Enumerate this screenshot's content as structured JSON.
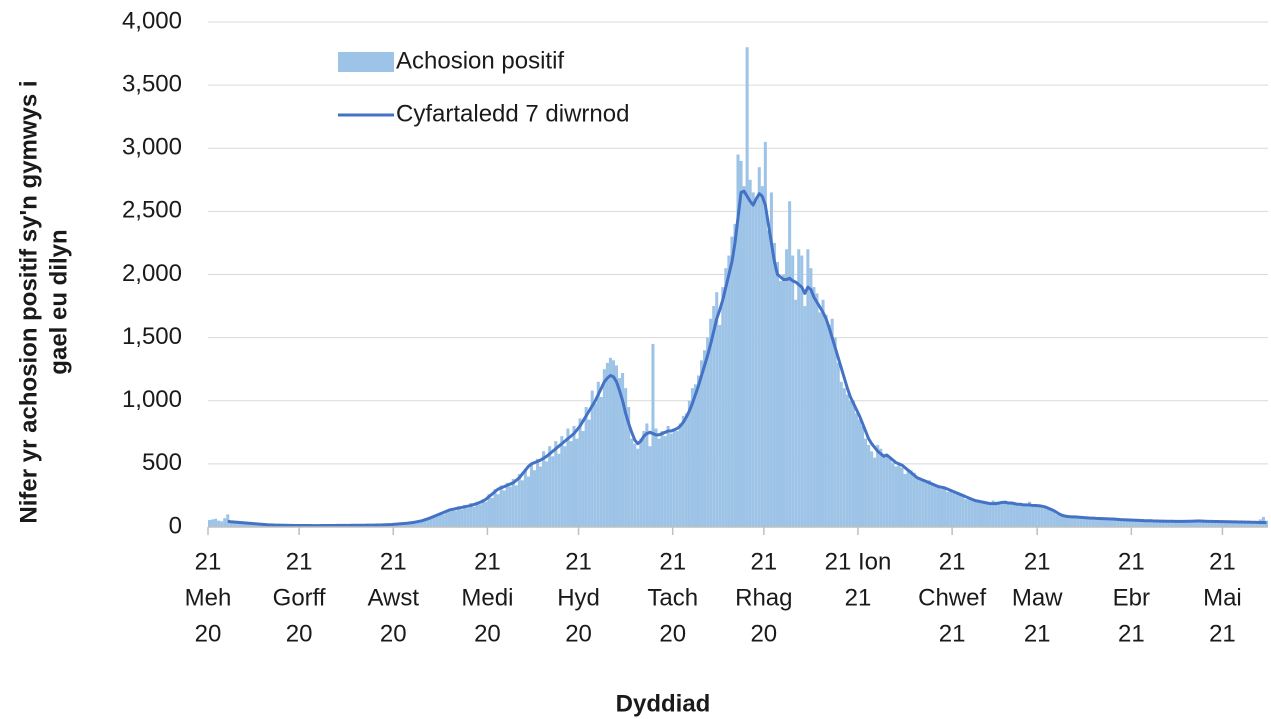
{
  "chart_data": {
    "type": "bar",
    "x_label": "Dyddiad",
    "y_label": [
      "Nifer yr achosion positif sy'n gymwys i",
      "gael eu dilyn"
    ],
    "xlim": [
      "2020-06-21",
      "2021-06-05"
    ],
    "ylim": [
      0,
      4000
    ],
    "yticks": [
      0,
      500,
      {
        "value": 1000,
        "label": "1,000"
      },
      {
        "value": 1500,
        "label": "1,500"
      },
      {
        "value": 2000,
        "label": "2,000"
      },
      {
        "value": 2500,
        "label": "2,500"
      },
      {
        "value": 3000,
        "label": "3,000"
      },
      {
        "value": 3500,
        "label": "3,500"
      },
      {
        "value": 4000,
        "label": "4,000"
      }
    ],
    "xticks": [
      {
        "value": "2020-06-21",
        "label": [
          "21",
          "Meh",
          "20"
        ]
      },
      {
        "value": "2020-07-21",
        "label": [
          "21",
          "Gorff",
          "20"
        ]
      },
      {
        "value": "2020-08-21",
        "label": [
          "21",
          "Awst",
          "20"
        ]
      },
      {
        "value": "2020-09-21",
        "label": [
          "21",
          "Medi",
          "20"
        ]
      },
      {
        "value": "2020-10-21",
        "label": [
          "21",
          "Hyd",
          "20"
        ]
      },
      {
        "value": "2020-11-21",
        "label": [
          "21",
          "Tach",
          "20"
        ]
      },
      {
        "value": "2020-12-21",
        "label": [
          "21",
          "Rhag",
          "20"
        ]
      },
      {
        "value": "2021-01-21",
        "label": [
          "21 Ion",
          "21"
        ]
      },
      {
        "value": "2021-02-21",
        "label": [
          "21",
          "Chwef",
          "21"
        ]
      },
      {
        "value": "2021-03-21",
        "label": [
          "21",
          "Maw",
          "21"
        ]
      },
      {
        "value": "2021-04-21",
        "label": [
          "21",
          "Ebr",
          "21"
        ]
      },
      {
        "value": "2021-05-21",
        "label": [
          "21",
          "Mai",
          "21"
        ]
      }
    ],
    "grid": true,
    "legend": "top-left",
    "x": [
      "2020-06-21",
      "2020-06-22",
      "2020-06-23",
      "2020-06-24",
      "2020-06-25",
      "2020-06-26",
      "2020-06-27",
      "2020-06-28",
      "2020-06-29",
      "2020-06-30",
      "2020-07-01",
      "2020-07-02",
      "2020-07-03",
      "2020-07-04",
      "2020-07-05",
      "2020-07-06",
      "2020-07-07",
      "2020-07-08",
      "2020-07-09",
      "2020-07-10",
      "2020-07-11",
      "2020-07-12",
      "2020-07-13",
      "2020-07-14",
      "2020-07-15",
      "2020-07-16",
      "2020-07-17",
      "2020-07-18",
      "2020-07-19",
      "2020-07-20",
      "2020-07-21",
      "2020-07-22",
      "2020-07-23",
      "2020-07-24",
      "2020-07-25",
      "2020-07-26",
      "2020-07-27",
      "2020-07-28",
      "2020-07-29",
      "2020-07-30",
      "2020-07-31",
      "2020-08-01",
      "2020-08-02",
      "2020-08-03",
      "2020-08-04",
      "2020-08-05",
      "2020-08-06",
      "2020-08-07",
      "2020-08-08",
      "2020-08-09",
      "2020-08-10",
      "2020-08-11",
      "2020-08-12",
      "2020-08-13",
      "2020-08-14",
      "2020-08-15",
      "2020-08-16",
      "2020-08-17",
      "2020-08-18",
      "2020-08-19",
      "2020-08-20",
      "2020-08-21",
      "2020-08-22",
      "2020-08-23",
      "2020-08-24",
      "2020-08-25",
      "2020-08-26",
      "2020-08-27",
      "2020-08-28",
      "2020-08-29",
      "2020-08-30",
      "2020-08-31",
      "2020-09-01",
      "2020-09-02",
      "2020-09-03",
      "2020-09-04",
      "2020-09-05",
      "2020-09-06",
      "2020-09-07",
      "2020-09-08",
      "2020-09-09",
      "2020-09-10",
      "2020-09-11",
      "2020-09-12",
      "2020-09-13",
      "2020-09-14",
      "2020-09-15",
      "2020-09-16",
      "2020-09-17",
      "2020-09-18",
      "2020-09-19",
      "2020-09-20",
      "2020-09-21",
      "2020-09-22",
      "2020-09-23",
      "2020-09-24",
      "2020-09-25",
      "2020-09-26",
      "2020-09-27",
      "2020-09-28",
      "2020-09-29",
      "2020-09-30",
      "2020-10-01",
      "2020-10-02",
      "2020-10-03",
      "2020-10-04",
      "2020-10-05",
      "2020-10-06",
      "2020-10-07",
      "2020-10-08",
      "2020-10-09",
      "2020-10-10",
      "2020-10-11",
      "2020-10-12",
      "2020-10-13",
      "2020-10-14",
      "2020-10-15",
      "2020-10-16",
      "2020-10-17",
      "2020-10-18",
      "2020-10-19",
      "2020-10-20",
      "2020-10-21",
      "2020-10-22",
      "2020-10-23",
      "2020-10-24",
      "2020-10-25",
      "2020-10-26",
      "2020-10-27",
      "2020-10-28",
      "2020-10-29",
      "2020-10-30",
      "2020-10-31",
      "2020-11-01",
      "2020-11-02",
      "2020-11-03",
      "2020-11-04",
      "2020-11-05",
      "2020-11-06",
      "2020-11-07",
      "2020-11-08",
      "2020-11-09",
      "2020-11-10",
      "2020-11-11",
      "2020-11-12",
      "2020-11-13",
      "2020-11-14",
      "2020-11-15",
      "2020-11-16",
      "2020-11-17",
      "2020-11-18",
      "2020-11-19",
      "2020-11-20",
      "2020-11-21",
      "2020-11-22",
      "2020-11-23",
      "2020-11-24",
      "2020-11-25",
      "2020-11-26",
      "2020-11-27",
      "2020-11-28",
      "2020-11-29",
      "2020-11-30",
      "2020-12-01",
      "2020-12-02",
      "2020-12-03",
      "2020-12-04",
      "2020-12-05",
      "2020-12-06",
      "2020-12-07",
      "2020-12-08",
      "2020-12-09",
      "2020-12-10",
      "2020-12-11",
      "2020-12-12",
      "2020-12-13",
      "2020-12-14",
      "2020-12-15",
      "2020-12-16",
      "2020-12-17",
      "2020-12-18",
      "2020-12-19",
      "2020-12-20",
      "2020-12-21",
      "2020-12-22",
      "2020-12-23",
      "2020-12-24",
      "2020-12-25",
      "2020-12-26",
      "2020-12-27",
      "2020-12-28",
      "2020-12-29",
      "2020-12-30",
      "2020-12-31",
      "2021-01-01",
      "2021-01-02",
      "2021-01-03",
      "2021-01-04",
      "2021-01-05",
      "2021-01-06",
      "2021-01-07",
      "2021-01-08",
      "2021-01-09",
      "2021-01-10",
      "2021-01-11",
      "2021-01-12",
      "2021-01-13",
      "2021-01-14",
      "2021-01-15",
      "2021-01-16",
      "2021-01-17",
      "2021-01-18",
      "2021-01-19",
      "2021-01-20",
      "2021-01-21",
      "2021-01-22",
      "2021-01-23",
      "2021-01-24",
      "2021-01-25",
      "2021-01-26",
      "2021-01-27",
      "2021-01-28",
      "2021-01-29",
      "2021-01-30",
      "2021-01-31",
      "2021-02-01",
      "2021-02-02",
      "2021-02-03",
      "2021-02-04",
      "2021-02-05",
      "2021-02-06",
      "2021-02-07",
      "2021-02-08",
      "2021-02-09",
      "2021-02-10",
      "2021-02-11",
      "2021-02-12",
      "2021-02-13",
      "2021-02-14",
      "2021-02-15",
      "2021-02-16",
      "2021-02-17",
      "2021-02-18",
      "2021-02-19",
      "2021-02-20",
      "2021-02-21",
      "2021-02-22",
      "2021-02-23",
      "2021-02-24",
      "2021-02-25",
      "2021-02-26",
      "2021-02-27",
      "2021-02-28",
      "2021-03-01",
      "2021-03-02",
      "2021-03-03",
      "2021-03-04",
      "2021-03-05",
      "2021-03-06",
      "2021-03-07",
      "2021-03-08",
      "2021-03-09",
      "2021-03-10",
      "2021-03-11",
      "2021-03-12",
      "2021-03-13",
      "2021-03-14",
      "2021-03-15",
      "2021-03-16",
      "2021-03-17",
      "2021-03-18",
      "2021-03-19",
      "2021-03-20",
      "2021-03-21",
      "2021-03-22",
      "2021-03-23",
      "2021-03-24",
      "2021-03-25",
      "2021-03-26",
      "2021-03-27",
      "2021-03-28",
      "2021-03-29",
      "2021-03-30",
      "2021-03-31",
      "2021-04-01",
      "2021-04-02",
      "2021-04-03",
      "2021-04-04",
      "2021-04-05",
      "2021-04-06",
      "2021-04-07",
      "2021-04-08",
      "2021-04-09",
      "2021-04-10",
      "2021-04-11",
      "2021-04-12",
      "2021-04-13",
      "2021-04-14",
      "2021-04-15",
      "2021-04-16",
      "2021-04-17",
      "2021-04-18",
      "2021-04-19",
      "2021-04-20",
      "2021-04-21",
      "2021-04-22",
      "2021-04-23",
      "2021-04-24",
      "2021-04-25",
      "2021-04-26",
      "2021-04-27",
      "2021-04-28",
      "2021-04-29",
      "2021-04-30",
      "2021-05-01",
      "2021-05-02",
      "2021-05-03",
      "2021-05-04",
      "2021-05-05",
      "2021-05-06",
      "2021-05-07",
      "2021-05-08",
      "2021-05-09",
      "2021-05-10",
      "2021-05-11",
      "2021-05-12",
      "2021-05-13",
      "2021-05-14",
      "2021-05-15",
      "2021-05-16",
      "2021-05-17",
      "2021-05-18",
      "2021-05-19",
      "2021-05-20",
      "2021-05-21",
      "2021-05-22",
      "2021-05-23",
      "2021-05-24",
      "2021-05-25",
      "2021-05-26",
      "2021-05-27",
      "2021-05-28",
      "2021-05-29",
      "2021-05-30",
      "2021-05-31",
      "2021-06-01",
      "2021-06-02",
      "2021-06-03",
      "2021-06-04"
    ],
    "series": [
      {
        "name": "Achosion positif",
        "type": "bar",
        "color": "#9dc3e6",
        "values": [
          55,
          60,
          65,
          50,
          45,
          70,
          100,
          40,
          35,
          30,
          40,
          30,
          35,
          28,
          25,
          30,
          22,
          20,
          18,
          20,
          15,
          18,
          14,
          16,
          12,
          15,
          12,
          14,
          11,
          13,
          10,
          13,
          12,
          14,
          10,
          12,
          9,
          13,
          11,
          12,
          11,
          14,
          12,
          13,
          15,
          12,
          14,
          15,
          13,
          16,
          13,
          15,
          16,
          14,
          17,
          15,
          18,
          16,
          20,
          19,
          22,
          20,
          26,
          24,
          30,
          28,
          35,
          32,
          45,
          42,
          55,
          52,
          70,
          68,
          90,
          85,
          110,
          100,
          130,
          125,
          150,
          130,
          165,
          140,
          175,
          150,
          190,
          160,
          200,
          180,
          220,
          200,
          260,
          230,
          300,
          260,
          330,
          290,
          350,
          320,
          380,
          330,
          420,
          370,
          460,
          400,
          510,
          450,
          540,
          480,
          600,
          520,
          640,
          560,
          680,
          580,
          720,
          640,
          780,
          680,
          800,
          700,
          860,
          760,
          950,
          850,
          1080,
          980,
          1150,
          1030,
          1250,
          1300,
          1340,
          1320,
          1280,
          1180,
          1220,
          1100,
          950,
          700,
          660,
          620,
          700,
          760,
          820,
          640,
          1450,
          780,
          700,
          760,
          720,
          800,
          740,
          780,
          760,
          820,
          880,
          900,
          1000,
          1100,
          1130,
          1200,
          1320,
          1400,
          1500,
          1650,
          1750,
          1860,
          1600,
          1900,
          2050,
          2150,
          2300,
          2400,
          2950,
          2900,
          2700,
          3800,
          2750,
          2650,
          2600,
          2850,
          2700,
          3050,
          2350,
          2650,
          2250,
          2100,
          1950,
          2000,
          2200,
          2580,
          2150,
          1800,
          2200,
          2150,
          1750,
          2200,
          2050,
          1900,
          1850,
          1700,
          1800,
          1680,
          1600,
          1650,
          1500,
          1300,
          1150,
          1100,
          1050,
          1000,
          1000,
          900,
          850,
          800,
          700,
          650,
          600,
          550,
          650,
          620,
          580,
          560,
          540,
          510,
          480,
          500,
          470,
          420,
          460,
          450,
          430,
          400,
          390,
          380,
          360,
          370,
          340,
          330,
          320,
          300,
          320,
          280,
          300,
          270,
          260,
          250,
          240,
          220,
          230,
          220,
          210,
          200,
          190,
          200,
          195,
          185,
          210,
          200,
          200,
          205,
          210,
          185,
          200,
          190,
          175,
          190,
          170,
          180,
          200,
          175,
          180,
          160,
          165,
          150,
          140,
          130,
          120,
          100,
          90,
          85,
          80,
          88,
          85,
          75,
          80,
          72,
          78,
          70,
          75,
          65,
          70,
          62,
          68,
          60,
          65,
          58,
          66,
          55,
          60,
          52,
          58,
          50,
          55,
          50,
          54,
          48,
          52,
          47,
          50,
          45,
          52,
          44,
          48,
          45,
          50,
          42,
          47,
          44,
          50,
          42,
          48,
          45,
          52,
          55,
          60,
          44,
          42,
          40,
          48,
          40,
          46,
          38,
          45,
          40,
          44,
          38,
          42,
          36,
          42,
          35,
          40,
          36,
          38,
          34,
          60,
          80,
          50
        ]
      },
      {
        "name": "Cyfartaledd 7 diwrnod",
        "type": "line",
        "color": "#4472c4",
        "values": [
          null,
          null,
          null,
          null,
          null,
          null,
          45,
          42,
          40,
          38,
          36,
          34,
          32,
          30,
          28,
          26,
          24,
          22,
          20,
          18,
          17,
          16,
          15,
          15,
          14,
          14,
          13,
          13,
          12,
          12,
          12,
          12,
          12,
          12,
          11,
          11,
          11,
          12,
          12,
          12,
          12,
          12,
          13,
          13,
          13,
          13,
          13,
          14,
          14,
          14,
          14,
          14,
          15,
          15,
          15,
          16,
          16,
          17,
          18,
          19,
          20,
          22,
          24,
          26,
          28,
          30,
          33,
          36,
          40,
          45,
          50,
          58,
          66,
          75,
          85,
          95,
          105,
          115,
          125,
          135,
          140,
          145,
          150,
          155,
          160,
          165,
          170,
          178,
          185,
          195,
          205,
          220,
          240,
          260,
          280,
          300,
          310,
          320,
          330,
          340,
          350,
          370,
          390,
          420,
          450,
          480,
          500,
          510,
          520,
          530,
          545,
          560,
          580,
          600,
          620,
          640,
          660,
          680,
          700,
          720,
          740,
          770,
          800,
          840,
          880,
          920,
          960,
          1000,
          1050,
          1100,
          1150,
          1180,
          1200,
          1190,
          1150,
          1080,
          1000,
          900,
          820,
          750,
          690,
          660,
          680,
          720,
          740,
          750,
          740,
          730,
          730,
          740,
          750,
          760,
          760,
          770,
          780,
          800,
          830,
          870,
          920,
          980,
          1050,
          1120,
          1200,
          1280,
          1360,
          1450,
          1550,
          1650,
          1720,
          1800,
          1900,
          2000,
          2100,
          2250,
          2450,
          2650,
          2660,
          2620,
          2580,
          2550,
          2600,
          2640,
          2620,
          2550,
          2400,
          2250,
          2100,
          2000,
          1980,
          1960,
          1960,
          1970,
          1950,
          1940,
          1920,
          1900,
          1850,
          1900,
          1880,
          1820,
          1780,
          1740,
          1700,
          1650,
          1580,
          1500,
          1420,
          1340,
          1260,
          1180,
          1100,
          1030,
          980,
          930,
          880,
          820,
          760,
          700,
          660,
          630,
          600,
          580,
          560,
          570,
          550,
          530,
          510,
          500,
          490,
          470,
          450,
          430,
          410,
          390,
          380,
          370,
          360,
          350,
          340,
          330,
          320,
          315,
          310,
          300,
          290,
          280,
          270,
          260,
          250,
          240,
          230,
          220,
          210,
          205,
          200,
          195,
          190,
          185,
          185,
          185,
          190,
          195,
          195,
          190,
          190,
          185,
          180,
          180,
          175,
          175,
          175,
          170,
          170,
          168,
          165,
          160,
          150,
          140,
          130,
          115,
          100,
          90,
          85,
          82,
          80,
          80,
          78,
          76,
          74,
          72,
          70,
          70,
          68,
          67,
          66,
          65,
          64,
          63,
          62,
          60,
          58,
          57,
          56,
          55,
          54,
          53,
          52,
          51,
          50,
          50,
          49,
          48,
          48,
          47,
          47,
          46,
          46,
          46,
          45,
          45,
          45,
          45,
          46,
          46,
          47,
          48,
          48,
          47,
          46,
          45,
          45,
          44,
          44,
          43,
          43,
          42,
          42,
          41,
          41,
          40,
          40,
          39,
          39,
          38,
          38,
          37,
          36,
          36,
          35
        ]
      }
    ]
  }
}
